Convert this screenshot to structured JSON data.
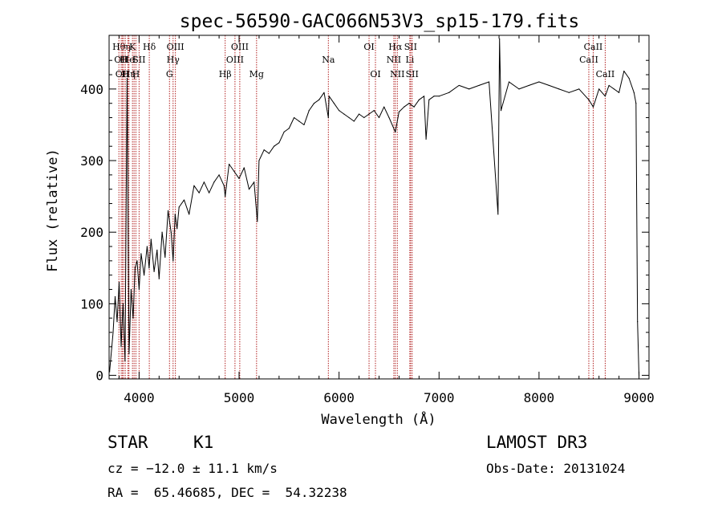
{
  "chart_data": {
    "type": "line",
    "title": "spec-56590-GAC066N53V3_sp15-179.fits",
    "xlabel": "Wavelength (Å)",
    "ylabel": "Flux (relative)",
    "xlim": [
      3700,
      9100
    ],
    "ylim": [
      -5,
      475
    ],
    "xticks": [
      4000,
      5000,
      6000,
      7000,
      8000,
      9000
    ],
    "yticks": [
      0,
      100,
      200,
      300,
      400
    ],
    "grid": false,
    "line_color": "#000000",
    "marker_color": "#b22222",
    "series": [
      {
        "name": "spectrum",
        "x": [
          3705,
          3740,
          3760,
          3780,
          3800,
          3820,
          3840,
          3860,
          3880,
          3900,
          3920,
          3940,
          3960,
          3980,
          4000,
          4020,
          4050,
          4080,
          4100,
          4120,
          4150,
          4180,
          4200,
          4230,
          4260,
          4290,
          4320,
          4340,
          4360,
          4380,
          4400,
          4450,
          4500,
          4550,
          4600,
          4650,
          4700,
          4750,
          4800,
          4850,
          4861,
          4900,
          4950,
          5000,
          5050,
          5100,
          5150,
          5183,
          5200,
          5250,
          5300,
          5350,
          5400,
          5450,
          5500,
          5550,
          5600,
          5650,
          5700,
          5750,
          5800,
          5850,
          5893,
          5900,
          5950,
          6000,
          6050,
          6100,
          6150,
          6200,
          6250,
          6300,
          6350,
          6400,
          6450,
          6500,
          6563,
          6600,
          6650,
          6700,
          6750,
          6800,
          6850,
          6870,
          6900,
          6950,
          7000,
          7100,
          7200,
          7300,
          7400,
          7500,
          7590,
          7605,
          7620,
          7700,
          7800,
          7900,
          8000,
          8100,
          8200,
          8300,
          8400,
          8498,
          8542,
          8600,
          8662,
          8700,
          8750,
          8800,
          8850,
          8900,
          8950,
          8970,
          8985,
          9000
        ],
        "y": [
          5,
          60,
          110,
          75,
          130,
          40,
          100,
          20,
          415,
          30,
          120,
          80,
          150,
          160,
          120,
          170,
          140,
          180,
          150,
          190,
          145,
          175,
          135,
          200,
          165,
          230,
          200,
          160,
          225,
          205,
          235,
          245,
          225,
          265,
          255,
          270,
          255,
          270,
          280,
          265,
          250,
          295,
          285,
          275,
          290,
          260,
          270,
          215,
          300,
          315,
          310,
          320,
          325,
          340,
          345,
          360,
          355,
          350,
          370,
          380,
          385,
          395,
          360,
          390,
          380,
          370,
          365,
          360,
          355,
          365,
          360,
          365,
          370,
          360,
          375,
          360,
          340,
          368,
          375,
          380,
          375,
          385,
          390,
          330,
          385,
          390,
          390,
          395,
          405,
          400,
          405,
          410,
          225,
          470,
          370,
          410,
          400,
          405,
          410,
          405,
          400,
          395,
          400,
          385,
          375,
          400,
          390,
          405,
          400,
          395,
          425,
          415,
          395,
          380,
          75,
          0
        ]
      }
    ],
    "line_markers": [
      {
        "wave": 3798,
        "row": 1,
        "label": "Hθ"
      },
      {
        "wave": 3821,
        "row": 2,
        "label": "OII"
      },
      {
        "wave": 3833,
        "row": 3,
        "label": "OII"
      },
      {
        "wave": 3845,
        "row": 2,
        "label": "H"
      },
      {
        "wave": 3862,
        "row": 3,
        "label": "H"
      },
      {
        "wave": 3889,
        "row": 1,
        "label": "η"
      },
      {
        "wave": 3889,
        "row": 2,
        "label": "He"
      },
      {
        "wave": 3899,
        "row": 3,
        "label": "Hη"
      },
      {
        "wave": 3934,
        "row": 1,
        "label": "K"
      },
      {
        "wave": 3950,
        "row": 2,
        "label": "I"
      },
      {
        "wave": 3968,
        "row": 3,
        "label": "H"
      },
      {
        "wave": 4000,
        "row": 2,
        "label": "SII"
      },
      {
        "wave": 4102,
        "row": 1,
        "label": "Hδ"
      },
      {
        "wave": 4304,
        "row": 3,
        "label": "G"
      },
      {
        "wave": 4340,
        "row": 2,
        "label": "Hγ"
      },
      {
        "wave": 4363,
        "row": 1,
        "label": "OIII"
      },
      {
        "wave": 4861,
        "row": 3,
        "label": "Hβ"
      },
      {
        "wave": 4959,
        "row": 2,
        "label": "OIII"
      },
      {
        "wave": 5007,
        "row": 1,
        "label": "OIII"
      },
      {
        "wave": 5175,
        "row": 3,
        "label": "Mg"
      },
      {
        "wave": 5893,
        "row": 2,
        "label": "Na"
      },
      {
        "wave": 6300,
        "row": 1,
        "label": "OI"
      },
      {
        "wave": 6364,
        "row": 3,
        "label": "OI"
      },
      {
        "wave": 6548,
        "row": 2,
        "label": "NII"
      },
      {
        "wave": 6563,
        "row": 1,
        "label": "Hα"
      },
      {
        "wave": 6583,
        "row": 3,
        "label": "NII"
      },
      {
        "wave": 6708,
        "row": 2,
        "label": "Li"
      },
      {
        "wave": 6716,
        "row": 1,
        "label": "SII"
      },
      {
        "wave": 6731,
        "row": 3,
        "label": "SII"
      },
      {
        "wave": 8498,
        "row": 2,
        "label": "CaII"
      },
      {
        "wave": 8542,
        "row": 1,
        "label": "CaII"
      },
      {
        "wave": 8662,
        "row": 3,
        "label": "CaII"
      }
    ]
  },
  "footer": {
    "object_class": "STAR",
    "subclass": "K1",
    "redshift": "cz = −12.0 ± 11.1 km/s",
    "coords": "RA =  65.46685, DEC =  54.32238",
    "survey": "LAMOST DR3",
    "obs_date": "Obs-Date: 20131024"
  }
}
